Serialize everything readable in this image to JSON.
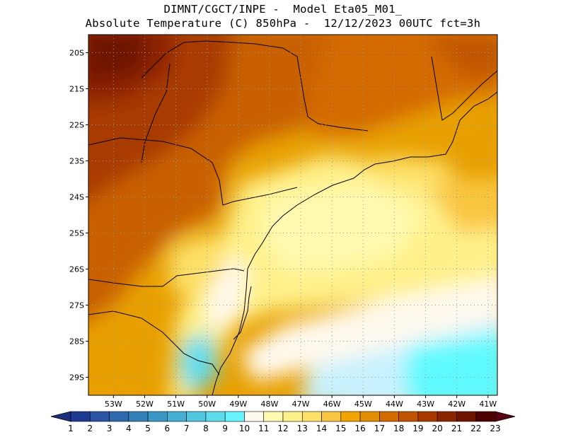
{
  "header": {
    "line1": "DIMNT/CGCT/INPE -  Model Eta05_M01_",
    "line2": "Absolute Temperature (C) 850hPa -  12/12/2023 00UTC fct=3h"
  },
  "axes": {
    "lat_labels": [
      "20S",
      "21S",
      "22S",
      "23S",
      "24S",
      "25S",
      "26S",
      "27S",
      "28S",
      "29S"
    ],
    "lon_labels": [
      "53W",
      "52W",
      "51W",
      "50W",
      "49W",
      "48W",
      "47W",
      "46W",
      "45W",
      "44W",
      "43W",
      "42W",
      "41W"
    ],
    "lat_range": [
      -29.5,
      -19.5
    ],
    "lon_range": [
      -53.8,
      -40.7
    ],
    "grid": true
  },
  "colorbar": {
    "labels": [
      "1",
      "2",
      "3",
      "4",
      "5",
      "6",
      "7",
      "8",
      "9",
      "10",
      "11",
      "12",
      "13",
      "14",
      "15",
      "16",
      "17",
      "18",
      "19",
      "20",
      "21",
      "22",
      "23"
    ],
    "colors": [
      "#1f3a93",
      "#2a55a6",
      "#2f6aae",
      "#3381b8",
      "#3a98c6",
      "#45b0d4",
      "#52c7e0",
      "#5edcec",
      "#66f5ff",
      "#fff9ee",
      "#fff9b0",
      "#fff18a",
      "#fde068",
      "#f9c640",
      "#f4a400",
      "#e48d00",
      "#d36a00",
      "#c05400",
      "#a83a00",
      "#8c2400",
      "#6e1400",
      "#4f0000"
    ],
    "low_color": "#1a2f80",
    "high_color": "#5a0010"
  },
  "map": {
    "field": "temperature_850hPa",
    "units": "C",
    "min": 10.5,
    "max": 22.5
  }
}
